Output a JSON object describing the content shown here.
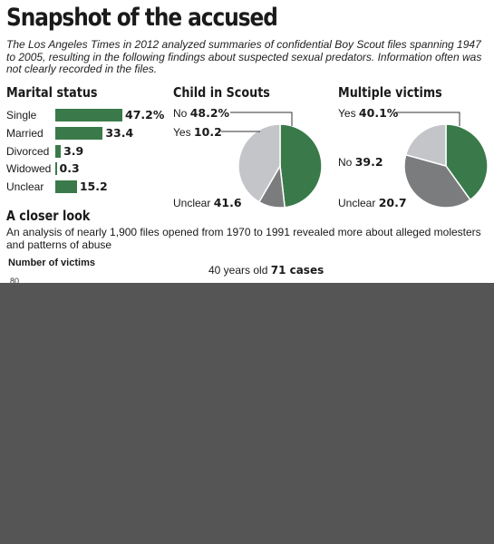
{
  "headline": "Snapshot of the accused",
  "intro": "The Los Angeles Times in 2012 analyzed summaries of confidential Boy Scout files spanning 1947 to 2005, resulting in the following findings about suspected sexual predators. Information often was not clearly recorded in the files.",
  "colors": {
    "green": "#3a7a4a",
    "gray_dark": "#7b7c7e",
    "gray_light": "#c4c5c8",
    "occluded": "#555555"
  },
  "chart_data": [
    {
      "type": "bar",
      "title": "Marital status",
      "categories": [
        "Single",
        "Married",
        "Divorced",
        "Widowed",
        "Unclear"
      ],
      "values": [
        47.2,
        33.4,
        3.9,
        0.3,
        15.2
      ],
      "value_labels": [
        "47.2%",
        "33.4",
        "3.9",
        "0.3",
        "15.2"
      ]
    },
    {
      "type": "pie",
      "title": "Child in Scouts",
      "labels": [
        "No",
        "Yes",
        "Unclear"
      ],
      "values": [
        48.2,
        10.2,
        41.6
      ],
      "value_labels": [
        "48.2%",
        "10.2",
        "41.6"
      ],
      "colors": [
        "#3a7a4a",
        "#7b7c7e",
        "#c4c5c8"
      ]
    },
    {
      "type": "pie",
      "title": "Multiple victims",
      "labels": [
        "Yes",
        "No",
        "Unclear"
      ],
      "values": [
        40.1,
        39.2,
        20.7
      ],
      "value_labels": [
        "40.1%",
        "39.2",
        "20.7"
      ],
      "colors": [
        "#3a7a4a",
        "#7b7c7e",
        "#c4c5c8"
      ]
    }
  ],
  "closer_look": {
    "title": "A closer look",
    "subtitle": "An analysis of nearly 1,900 files opened from 1970 to 1991 revealed more about alleged molesters and patterns of abuse",
    "axis_title": "Number of victims",
    "ytick": "80",
    "annotation_prefix": "40 years old",
    "annotation_value": "71 cases"
  }
}
